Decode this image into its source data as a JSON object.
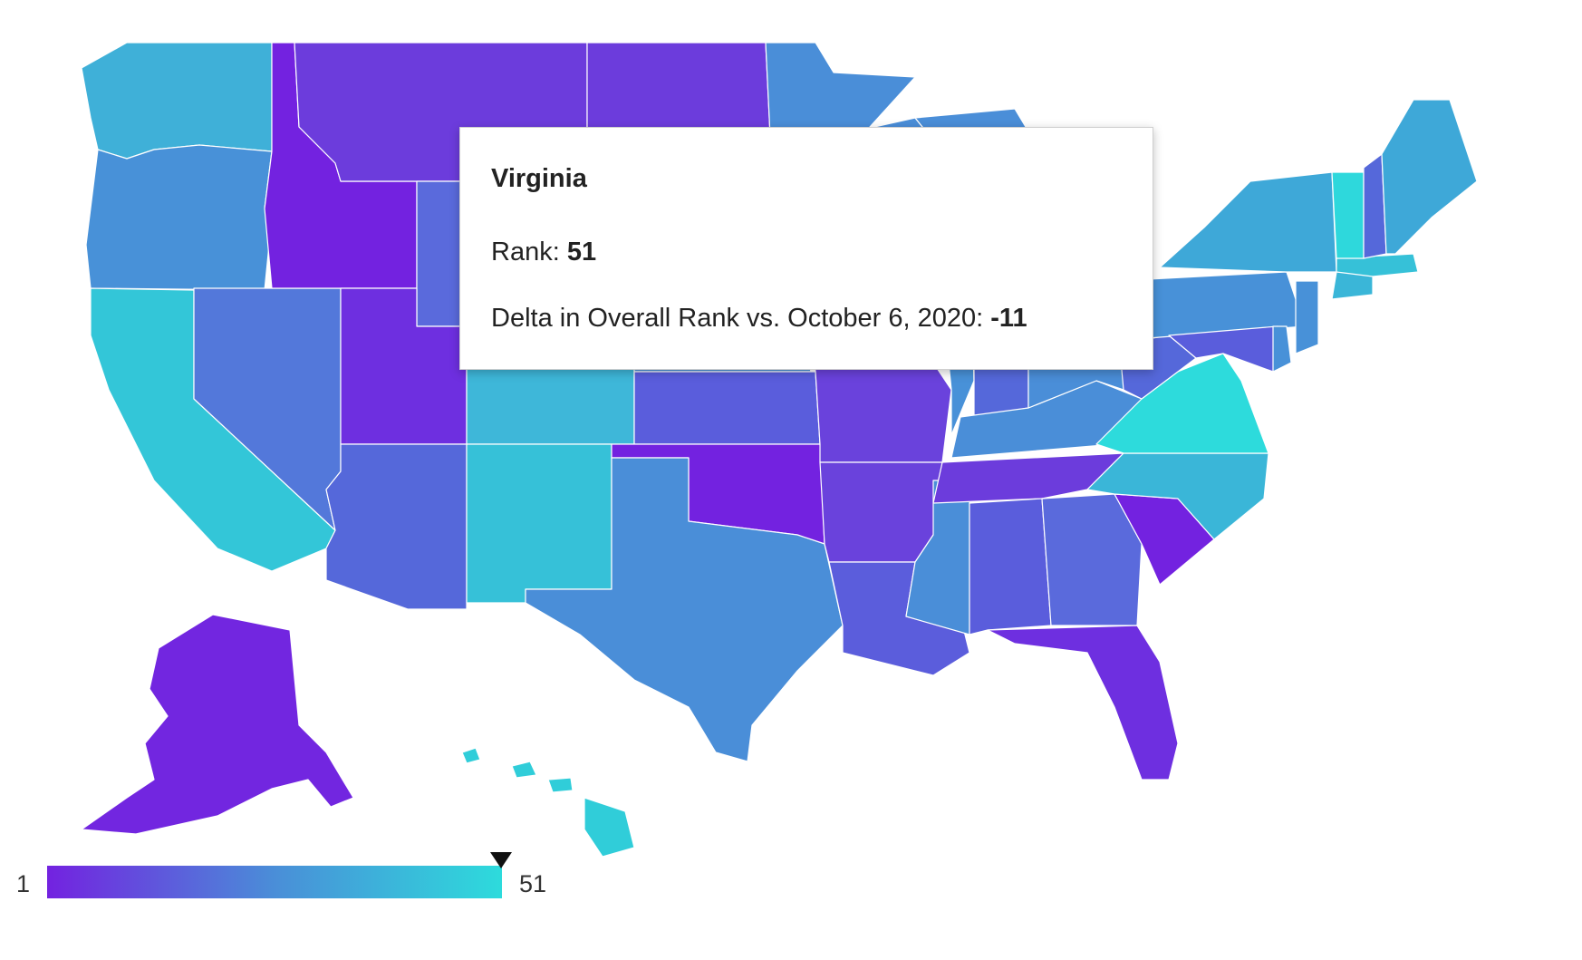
{
  "tooltip": {
    "state": "Virginia",
    "rank_label": "Rank: ",
    "rank_value": "51",
    "delta_label": "Delta in Overall Rank vs. October 6, 2020: ",
    "delta_value": "-11"
  },
  "legend": {
    "min_label": "1",
    "max_label": "51",
    "min_color": "#7322e0",
    "mid_color": "#4a8ed8",
    "max_color": "#2ddbdc",
    "marker_value": 51
  },
  "states": [
    {
      "name": "washington",
      "color": "#3fb0d8"
    },
    {
      "name": "oregon",
      "color": "#4891d8"
    },
    {
      "name": "california",
      "color": "#33c6d8"
    },
    {
      "name": "nevada",
      "color": "#5378da"
    },
    {
      "name": "idaho",
      "color": "#7322e0"
    },
    {
      "name": "montana",
      "color": "#6c3cdc"
    },
    {
      "name": "wyoming",
      "color": "#5a6adc"
    },
    {
      "name": "utah",
      "color": "#6e2fe0"
    },
    {
      "name": "arizona",
      "color": "#5568da"
    },
    {
      "name": "colorado",
      "color": "#3eb7d9"
    },
    {
      "name": "new-mexico",
      "color": "#36c1d8"
    },
    {
      "name": "north-dakota",
      "color": "#6c3cdc"
    },
    {
      "name": "south-dakota",
      "color": "#5a6adc"
    },
    {
      "name": "nebraska",
      "color": "#4a8ed8"
    },
    {
      "name": "kansas",
      "color": "#5a5ddc"
    },
    {
      "name": "oklahoma",
      "color": "#7322e0"
    },
    {
      "name": "texas",
      "color": "#4a8ed8"
    },
    {
      "name": "minnesota",
      "color": "#4a8ed8"
    },
    {
      "name": "iowa",
      "color": "#5378da"
    },
    {
      "name": "missouri",
      "color": "#6a42dc"
    },
    {
      "name": "arkansas",
      "color": "#6a42dc"
    },
    {
      "name": "louisiana",
      "color": "#5b5ddc"
    },
    {
      "name": "wisconsin",
      "color": "#4a8ed8"
    },
    {
      "name": "illinois",
      "color": "#4891d8"
    },
    {
      "name": "mississippi",
      "color": "#4a8ed8"
    },
    {
      "name": "michigan",
      "color": "#4a8ed8"
    },
    {
      "name": "indiana",
      "color": "#5568da"
    },
    {
      "name": "kentucky",
      "color": "#4a8ed8"
    },
    {
      "name": "tennessee",
      "color": "#6c3cdc"
    },
    {
      "name": "alabama",
      "color": "#5a5ddc"
    },
    {
      "name": "georgia",
      "color": "#5a6adc"
    },
    {
      "name": "florida",
      "color": "#6e2fe0"
    },
    {
      "name": "south-carolina",
      "color": "#7322e0"
    },
    {
      "name": "north-carolina",
      "color": "#3ab6d8"
    },
    {
      "name": "virginia",
      "color": "#2ddbdc"
    },
    {
      "name": "west-virginia",
      "color": "#5568da"
    },
    {
      "name": "ohio",
      "color": "#4a8ed8"
    },
    {
      "name": "pennsylvania",
      "color": "#4891d8"
    },
    {
      "name": "new-york",
      "color": "#3ea8d8"
    },
    {
      "name": "maryland",
      "color": "#5a5ddc"
    },
    {
      "name": "delaware",
      "color": "#4891d8"
    },
    {
      "name": "new-jersey",
      "color": "#4891d8"
    },
    {
      "name": "connecticut",
      "color": "#3ab6d8"
    },
    {
      "name": "massachusetts",
      "color": "#36c1d8"
    },
    {
      "name": "vermont",
      "color": "#2ed8dc"
    },
    {
      "name": "new-hampshire",
      "color": "#5568da"
    },
    {
      "name": "maine",
      "color": "#3ea8d8"
    },
    {
      "name": "alaska",
      "color": "#7226e0"
    },
    {
      "name": "hawaii",
      "color": "#30cdd9"
    }
  ]
}
